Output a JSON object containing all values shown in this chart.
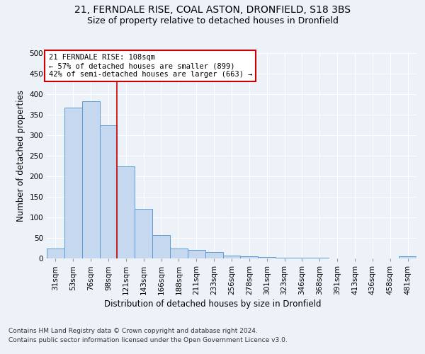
{
  "title_line1": "21, FERNDALE RISE, COAL ASTON, DRONFIELD, S18 3BS",
  "title_line2": "Size of property relative to detached houses in Dronfield",
  "xlabel": "Distribution of detached houses by size in Dronfield",
  "ylabel": "Number of detached properties",
  "footer_line1": "Contains HM Land Registry data © Crown copyright and database right 2024.",
  "footer_line2": "Contains public sector information licensed under the Open Government Licence v3.0.",
  "categories": [
    "31sqm",
    "53sqm",
    "76sqm",
    "98sqm",
    "121sqm",
    "143sqm",
    "166sqm",
    "188sqm",
    "211sqm",
    "233sqm",
    "256sqm",
    "278sqm",
    "301sqm",
    "323sqm",
    "346sqm",
    "368sqm",
    "391sqm",
    "413sqm",
    "436sqm",
    "458sqm",
    "481sqm"
  ],
  "values": [
    25,
    368,
    383,
    325,
    225,
    120,
    57,
    25,
    20,
    15,
    7,
    5,
    3,
    1,
    1,
    1,
    0,
    0,
    0,
    0,
    5
  ],
  "bar_color": "#c5d8f0",
  "bar_edge_color": "#5b9bd5",
  "property_line_x": 3.5,
  "annotation_text_line1": "21 FERNDALE RISE: 108sqm",
  "annotation_text_line2": "← 57% of detached houses are smaller (899)",
  "annotation_text_line3": "42% of semi-detached houses are larger (663) →",
  "annotation_box_color": "#ffffff",
  "annotation_box_edge_color": "#cc0000",
  "property_line_color": "#cc0000",
  "ylim": [
    0,
    500
  ],
  "yticks": [
    0,
    50,
    100,
    150,
    200,
    250,
    300,
    350,
    400,
    450,
    500
  ],
  "background_color": "#edf2f9",
  "plot_bg_color": "#edf2f9",
  "grid_color": "#ffffff",
  "title_fontsize": 10,
  "subtitle_fontsize": 9,
  "tick_fontsize": 7.5,
  "label_fontsize": 8.5,
  "footer_fontsize": 6.5
}
